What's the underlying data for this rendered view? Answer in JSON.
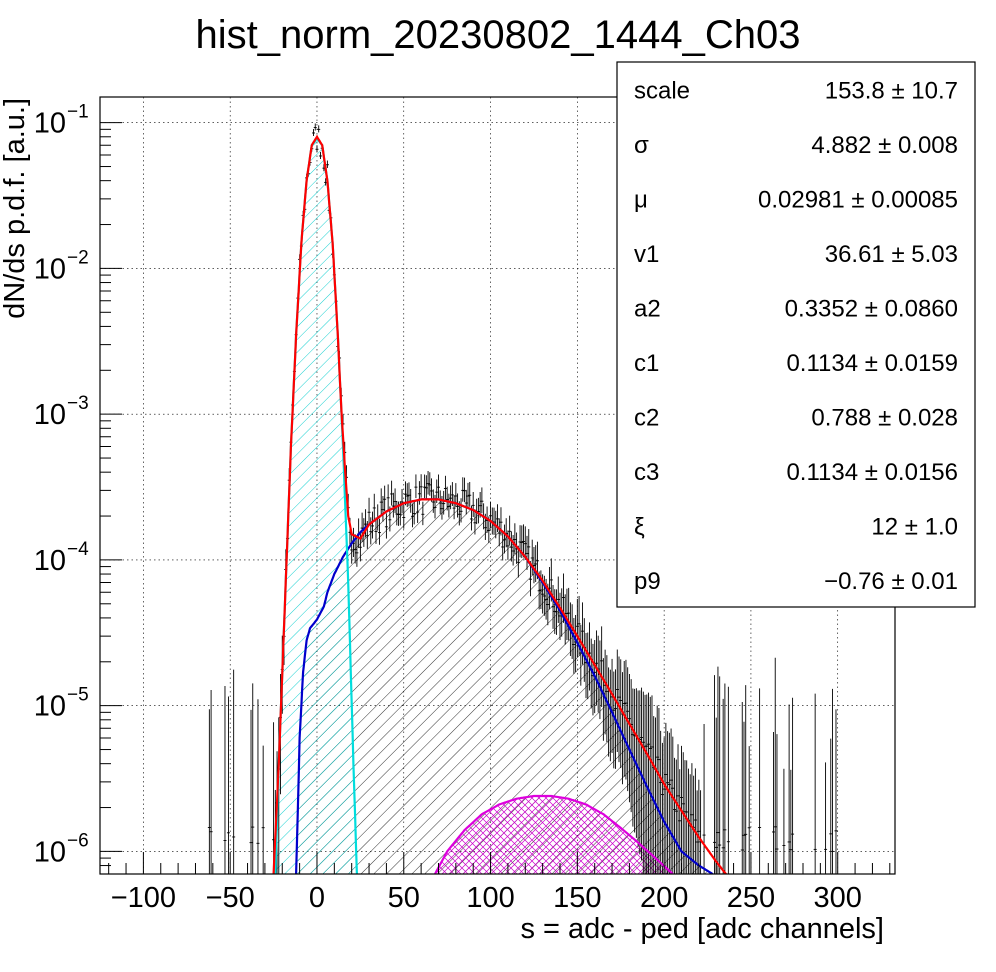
{
  "chart_data": {
    "type": "histogram-fit",
    "title": "hist_norm_20230802_1444_Ch03",
    "xlabel": "s = adc - ped [adc channels]",
    "ylabel": "dN/ds p.d.f. [a.u.]",
    "xlim": [
      -125,
      333
    ],
    "ylim": [
      7e-07,
      0.15
    ],
    "yscale": "log",
    "grid": true,
    "x_ticks": [
      -100,
      -50,
      0,
      50,
      100,
      150,
      200,
      250,
      300
    ],
    "y_ticks": [
      {
        "value": 1e-06,
        "base": "10",
        "exp": "−6"
      },
      {
        "value": 1e-05,
        "base": "10",
        "exp": "−5"
      },
      {
        "value": 0.0001,
        "base": "10",
        "exp": "−4"
      },
      {
        "value": 0.001,
        "base": "10",
        "exp": "−3"
      },
      {
        "value": 0.01,
        "base": "10",
        "exp": "−2"
      },
      {
        "value": 0.1,
        "base": "10",
        "exp": "−1"
      }
    ],
    "stats_box": {
      "placement": "top-right",
      "rows": [
        {
          "name": "scale",
          "value": "153.8 ± 10.7"
        },
        {
          "name": "σ",
          "value": "4.882 ± 0.008"
        },
        {
          "name": "μ",
          "value": "0.02981 ± 0.00085"
        },
        {
          "name": "v1",
          "value": "36.61 ± 5.03"
        },
        {
          "name": "a2",
          "value": "0.3352 ± 0.0860"
        },
        {
          "name": "c1",
          "value": "0.1134 ± 0.0159"
        },
        {
          "name": "c2",
          "value": "0.788 ± 0.028"
        },
        {
          "name": "c3",
          "value": "0.1134 ± 0.0156"
        },
        {
          "name": "ξ",
          "value": "12 ± 1.0"
        },
        {
          "name": "p9",
          "value": "−0.76 ± 0.01"
        }
      ]
    },
    "series": [
      {
        "color": "#ff0000",
        "kind": "total-fit",
        "points": [
          [
            -25,
            7e-07
          ],
          [
            -22,
            4e-06
          ],
          [
            -18,
            7e-05
          ],
          [
            -15,
            0.0006
          ],
          [
            -12,
            0.0035
          ],
          [
            -9,
            0.015
          ],
          [
            -6,
            0.04
          ],
          [
            -3,
            0.07
          ],
          [
            0,
            0.08
          ],
          [
            3,
            0.07
          ],
          [
            6,
            0.04
          ],
          [
            9,
            0.015
          ],
          [
            12,
            0.0035
          ],
          [
            14,
            0.0011
          ],
          [
            16,
            0.00045
          ],
          [
            17,
            0.0003
          ],
          [
            18,
            0.0002
          ],
          [
            20,
            0.00015
          ],
          [
            25,
            0.00014
          ],
          [
            30,
            0.000175
          ],
          [
            40,
            0.000215
          ],
          [
            50,
            0.000245
          ],
          [
            60,
            0.00026
          ],
          [
            70,
            0.00026
          ],
          [
            80,
            0.000245
          ],
          [
            90,
            0.00022
          ],
          [
            100,
            0.000185
          ],
          [
            110,
            0.000145
          ],
          [
            120,
            0.000105
          ],
          [
            130,
            7.2e-05
          ],
          [
            140,
            4.7e-05
          ],
          [
            150,
            3e-05
          ],
          [
            160,
            1.9e-05
          ],
          [
            170,
            1.2e-05
          ],
          [
            180,
            7.5e-06
          ],
          [
            190,
            4.7e-06
          ],
          [
            200,
            2.9e-06
          ],
          [
            210,
            1.9e-06
          ],
          [
            220,
            1.25e-06
          ],
          [
            230,
            8.5e-07
          ],
          [
            240,
            6e-07
          ]
        ]
      },
      {
        "color": "#0000cc",
        "kind": "signal-component",
        "points": [
          [
            -12,
            7e-07
          ],
          [
            -11,
            2e-06
          ],
          [
            -10,
            6e-06
          ],
          [
            -8,
            1.7e-05
          ],
          [
            -6,
            2.8e-05
          ],
          [
            -4,
            3.4e-05
          ],
          [
            0,
            3.9e-05
          ],
          [
            4,
            4.8e-05
          ],
          [
            6,
            6e-05
          ],
          [
            10,
            8e-05
          ],
          [
            15,
            0.000105
          ],
          [
            20,
            0.00013
          ],
          [
            25,
            0.000155
          ],
          [
            30,
            0.000175
          ],
          [
            40,
            0.000215
          ],
          [
            50,
            0.000245
          ],
          [
            60,
            0.00026
          ],
          [
            70,
            0.00026
          ],
          [
            80,
            0.000245
          ],
          [
            90,
            0.00022
          ],
          [
            100,
            0.000185
          ],
          [
            110,
            0.000145
          ],
          [
            120,
            0.000105
          ],
          [
            130,
            7e-05
          ],
          [
            140,
            4.5e-05
          ],
          [
            150,
            2.7e-05
          ],
          [
            160,
            1.6e-05
          ],
          [
            170,
            9e-06
          ],
          [
            180,
            5e-06
          ],
          [
            190,
            2.8e-06
          ],
          [
            200,
            1.6e-06
          ],
          [
            210,
            1e-06
          ],
          [
            220,
            8e-07
          ],
          [
            228,
            7e-07
          ]
        ]
      },
      {
        "color": "#00dddd",
        "kind": "pedestal-component",
        "points": [
          [
            -24,
            7e-07
          ],
          [
            -22,
            4e-06
          ],
          [
            -18,
            7e-05
          ],
          [
            -15,
            0.0006
          ],
          [
            -12,
            0.0035
          ],
          [
            -9,
            0.015
          ],
          [
            -6,
            0.04
          ],
          [
            -3,
            0.07
          ],
          [
            0,
            0.078
          ],
          [
            3,
            0.07
          ],
          [
            6,
            0.04
          ],
          [
            9,
            0.015
          ],
          [
            12,
            0.0035
          ],
          [
            15,
            0.0006
          ],
          [
            18,
            7e-05
          ],
          [
            21,
            4e-06
          ],
          [
            23,
            7e-07
          ]
        ]
      },
      {
        "color": "#dd00dd",
        "kind": "second-component",
        "points": [
          [
            68,
            7e-07
          ],
          [
            75,
            1e-06
          ],
          [
            85,
            1.4e-06
          ],
          [
            95,
            1.8e-06
          ],
          [
            105,
            2.1e-06
          ],
          [
            115,
            2.3e-06
          ],
          [
            125,
            2.4e-06
          ],
          [
            135,
            2.4e-06
          ],
          [
            145,
            2.3e-06
          ],
          [
            155,
            2.1e-06
          ],
          [
            165,
            1.8e-06
          ],
          [
            175,
            1.45e-06
          ],
          [
            185,
            1.15e-06
          ],
          [
            195,
            9e-07
          ],
          [
            205,
            7e-07
          ]
        ]
      }
    ]
  }
}
